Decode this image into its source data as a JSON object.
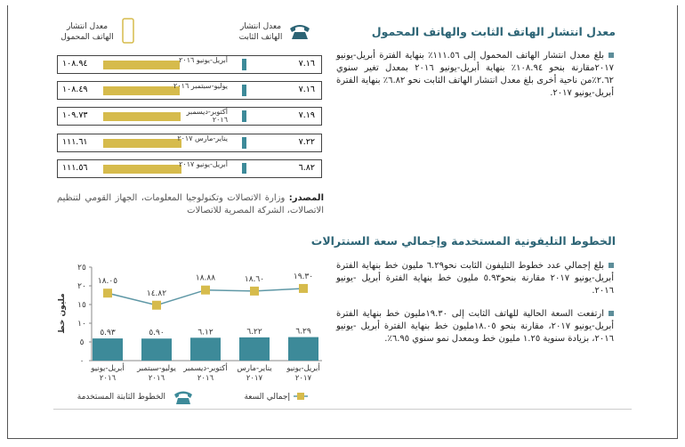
{
  "section1": {
    "title": "معدل انتشار الهاتف الثابت والهاتف المحمول",
    "bullets": [
      "بلغ معدل انتشار الهاتف المحمول إلى ١١١.٥٦٪ بنهاية الفترة أبريل-يونيو ٢٠١٧مقارنة بنحو ١٠٨.٩٤٪ بنهاية أبريل-يونيو ٢٠١٦ بمعدل تغير سنوي ٢.٦٢٪من ناحية أخرى بلغ معدل انتشار الهاتف الثابت نحو ٦.٨٢٪ بنهاية الفترة أبريل-يونيو ٢٠١٧."
    ]
  },
  "table": {
    "mobile_header": "معدل انتشار الهاتف المحمول",
    "fixed_header": "معدل انتشار الهاتف الثابت",
    "rows": [
      {
        "period": "أبريل-يونيو ٢٠١٦",
        "mobile": 108.94,
        "mobile_label": "١٠٨.٩٤",
        "fixed": 7.16,
        "fixed_label": "٧.١٦"
      },
      {
        "period": "يوليو-سبتمبر ٢٠١٦",
        "mobile": 108.49,
        "mobile_label": "١٠٨.٤٩",
        "fixed": 7.16,
        "fixed_label": "٧.١٦"
      },
      {
        "period": "أكتوبر-ديسمبر ٢٠١٦",
        "mobile": 109.73,
        "mobile_label": "١٠٩.٧٣",
        "fixed": 7.19,
        "fixed_label": "٧.١٩"
      },
      {
        "period": "يناير-مارس ٢٠١٧",
        "mobile": 111.61,
        "mobile_label": "١١١.٦١",
        "fixed": 7.22,
        "fixed_label": "٧.٢٢"
      },
      {
        "period": "أبريل-يونيو ٢٠١٧",
        "mobile": 111.56,
        "mobile_label": "١١١.٥٦",
        "fixed": 6.82,
        "fixed_label": "٦.٨٢"
      }
    ]
  },
  "source": {
    "label": "المصدر:",
    "text": "وزارة الاتصالات وتكنولوجيا المعلومات، الجهاز القومي لتنظيم الاتصالات، الشركة المصرية للاتصالات"
  },
  "section2": {
    "title": "الخطوط التليفونية المستخدمة وإجمالي سعة السنترالات",
    "bullets": [
      "بلغ إجمالي عدد خطوط التليفون الثابت نحو٦.٢٩ مليون خط بنهاية الفترة أبريل-يونيو ٢٠١٧ مقارنة بنحو٥.٩٣ مليون خط بنهاية الفترة أبريل -يونيو ٢٠١٦.",
      "ارتفعت السعة الحالية للهاتف الثابت إلى ١٩.٣٠مليون خط بنهاية الفترة أبريل-يونيو ٢٠١٧، مقارنة بنحو ١٨.٠٥مليون خط بنهاية الفترة أبريل -يونيو ٢٠١٦، بزيادة سنوية ١.٢٥ مليون خط وبمعدل نمو سنوي ٦.٩٥٪."
    ]
  },
  "chart_data": {
    "type": "combo",
    "ylabel": "مليون خط",
    "categories": [
      "أبريل-يونيو ٢٠١٦",
      "يوليو-سبتمبر ٢٠١٦",
      "أكتوبر-ديسمبر ٢٠١٦",
      "يناير-مارس ٢٠١٧",
      "أبريل-يونيو ٢٠١٧"
    ],
    "ylim": [
      0,
      25
    ],
    "yticks": [
      {
        "value": 0,
        "label": "٠"
      },
      {
        "value": 5,
        "label": "٥"
      },
      {
        "value": 10,
        "label": "١٠"
      },
      {
        "value": 15,
        "label": "١٥"
      },
      {
        "value": 20,
        "label": "٢٠"
      },
      {
        "value": 25,
        "label": "٢٥"
      }
    ],
    "series": [
      {
        "name": "الخطوط الثابتة المستخدمة",
        "type": "bar",
        "color": "#3d8a99",
        "values": [
          5.93,
          5.9,
          6.12,
          6.22,
          6.29
        ],
        "value_labels": [
          "٥.٩٣",
          "٥.٩٠",
          "٦.١٢",
          "٦.٢٢",
          "٦.٢٩"
        ]
      },
      {
        "name": "إجمالي السعة",
        "type": "line",
        "color": "#d6bb4c",
        "line_color": "#5f98a6",
        "values": [
          18.05,
          14.82,
          18.88,
          18.6,
          19.3
        ],
        "value_labels": [
          "١٨.٠٥",
          "١٤.٨٢",
          "١٨.٨٨",
          "١٨.٦٠",
          "١٩.٣٠"
        ]
      }
    ]
  }
}
